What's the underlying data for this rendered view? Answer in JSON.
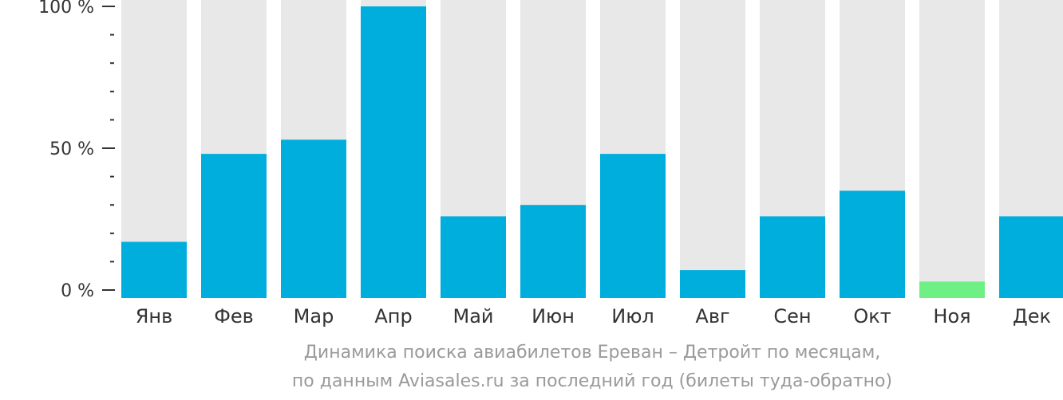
{
  "chart_data": {
    "type": "bar",
    "categories": [
      "Янв",
      "Фев",
      "Мар",
      "Апр",
      "Май",
      "Июн",
      "Июл",
      "Авг",
      "Сен",
      "Окт",
      "Ноя",
      "Дек"
    ],
    "values": [
      17,
      48,
      53,
      100,
      26,
      30,
      48,
      7,
      26,
      35,
      3,
      26
    ],
    "ylim": [
      0,
      100
    ],
    "y_tick_labels": [
      "100 %",
      "50 %",
      "0 %"
    ],
    "y_ticks": [
      100,
      50,
      0
    ],
    "y_minor_step": 10,
    "grid": false,
    "background_bars": true,
    "highlight_min": true,
    "colors": {
      "bar": "#00aede",
      "bar_min": "#6ff085",
      "bar_background": "#e8e8e8",
      "axis": "#333333",
      "caption": "#9a9a9a"
    }
  },
  "caption": {
    "line1": "Динамика поиска авиабилетов Ереван – Детройт по месяцам,",
    "line2": "по данным Aviasales.ru за последний год (билеты туда-обратно)"
  }
}
